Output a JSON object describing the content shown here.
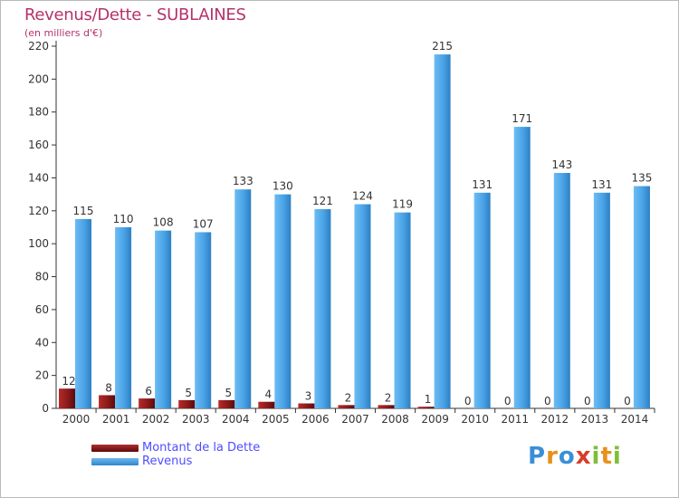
{
  "chart_data": {
    "type": "bar",
    "title": "Revenus/Dette - SUBLAINES",
    "subtitle": "(en milliers d'€)",
    "categories": [
      "2000",
      "2001",
      "2002",
      "2003",
      "2004",
      "2005",
      "2006",
      "2007",
      "2008",
      "2009",
      "2010",
      "2011",
      "2012",
      "2013",
      "2014"
    ],
    "series": [
      {
        "name": "Montant de la Dette",
        "color": "#8b1a1a",
        "values": [
          12,
          8,
          6,
          5,
          5,
          4,
          3,
          2,
          2,
          1,
          0,
          0,
          0,
          0,
          0
        ]
      },
      {
        "name": "Revenus",
        "color": "#4aa3e6",
        "values": [
          115,
          110,
          108,
          107,
          133,
          130,
          121,
          124,
          119,
          215,
          131,
          171,
          143,
          131,
          135
        ]
      }
    ],
    "ylim": [
      0,
      220
    ],
    "yticks": [
      0,
      20,
      40,
      60,
      80,
      100,
      120,
      140,
      160,
      180,
      200,
      220
    ],
    "grid": false,
    "legend": "bottom-left"
  },
  "brand": {
    "letters": [
      "P",
      "r",
      "o",
      "x",
      "i",
      "t",
      "i"
    ]
  }
}
